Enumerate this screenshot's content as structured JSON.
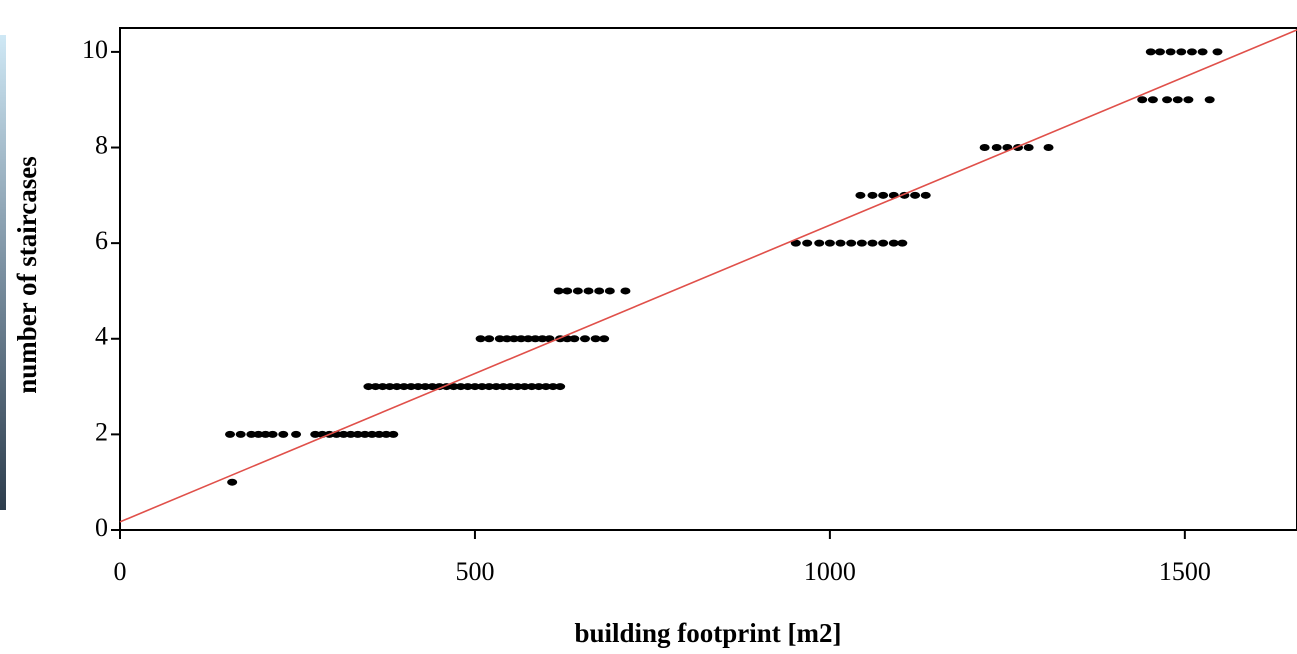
{
  "chart_data": {
    "type": "scatter",
    "x_label": "building footprint [m2]",
    "y_label": "number of staircases",
    "xlim": [
      0,
      1658
    ],
    "ylim": [
      0,
      10.5
    ],
    "xticks": [
      0,
      500,
      1000,
      1500
    ],
    "yticks": [
      0,
      2,
      4,
      6,
      8,
      10
    ],
    "color": "#000000",
    "x": [
      158,
      155,
      170,
      185,
      195,
      205,
      215,
      230,
      248,
      275,
      285,
      295,
      305,
      315,
      325,
      335,
      345,
      355,
      365,
      375,
      385,
      350,
      360,
      370,
      380,
      390,
      400,
      410,
      420,
      430,
      440,
      450,
      460,
      470,
      480,
      490,
      500,
      510,
      520,
      530,
      540,
      550,
      560,
      570,
      580,
      590,
      600,
      610,
      620,
      508,
      520,
      535,
      545,
      555,
      565,
      575,
      585,
      595,
      605,
      620,
      630,
      640,
      655,
      670,
      682,
      618,
      630,
      645,
      660,
      675,
      690,
      712,
      952,
      968,
      985,
      1000,
      1015,
      1030,
      1045,
      1060,
      1075,
      1090,
      1102,
      1043,
      1060,
      1075,
      1090,
      1105,
      1120,
      1135,
      1218,
      1235,
      1250,
      1265,
      1280,
      1308,
      1440,
      1455,
      1475,
      1490,
      1505,
      1535,
      1452,
      1465,
      1480,
      1495,
      1510,
      1525,
      1546
    ],
    "y": [
      1,
      2,
      2,
      2,
      2,
      2,
      2,
      2,
      2,
      2,
      2,
      2,
      2,
      2,
      2,
      2,
      2,
      2,
      2,
      2,
      2,
      3,
      3,
      3,
      3,
      3,
      3,
      3,
      3,
      3,
      3,
      3,
      3,
      3,
      3,
      3,
      3,
      3,
      3,
      3,
      3,
      3,
      3,
      3,
      3,
      3,
      3,
      3,
      3,
      4,
      4,
      4,
      4,
      4,
      4,
      4,
      4,
      4,
      4,
      4,
      4,
      4,
      4,
      4,
      4,
      5,
      5,
      5,
      5,
      5,
      5,
      5,
      6,
      6,
      6,
      6,
      6,
      6,
      6,
      6,
      6,
      6,
      6,
      7,
      7,
      7,
      7,
      7,
      7,
      7,
      8,
      8,
      8,
      8,
      8,
      8,
      9,
      9,
      9,
      9,
      9,
      9,
      10,
      10,
      10,
      10,
      10,
      10,
      10
    ],
    "fit_line": {
      "color": "#e0504a",
      "x": [
        0,
        1658
      ],
      "y": [
        0.17,
        10.46
      ]
    }
  }
}
